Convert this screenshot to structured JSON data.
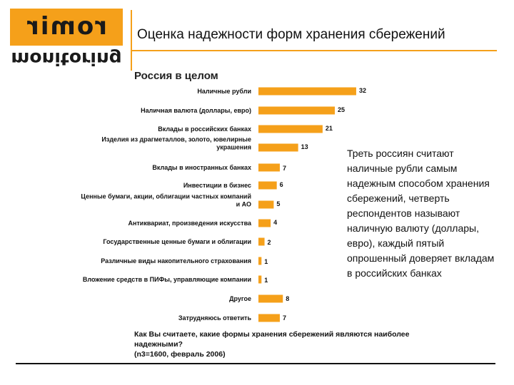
{
  "logo": {
    "brand": "romir",
    "product": "monitoring",
    "color": "#f5a01a"
  },
  "header": {
    "title": "Оценка надежности форм хранения сбережений"
  },
  "subtitle": "Россия в целом",
  "annotation": "Треть россиян считают наличные рубли самым надежным способом хранения сбережений, четверть респондентов называют наличную валюту (доллары, евро), каждый пятый опрошенный доверяет вкладам в российских банках",
  "footnote": {
    "line1": "Как Вы считаете, какие формы хранения сбережений являются наиболее",
    "line2": "надежными?",
    "line3": "(n3=1600, февраль 2006)"
  },
  "chart_data": {
    "type": "bar",
    "orientation": "horizontal",
    "bar_color": "#f5a01a",
    "categories": [
      [
        "Наличные рубли"
      ],
      [
        "Наличная валюта (доллары, евро)"
      ],
      [
        "Вклады в российских банках"
      ],
      [
        "Изделия из драгметаллов, золото, ювелирные",
        "украшения"
      ],
      [
        "Вклады в иностранных банках"
      ],
      [
        "Инвестиции в бизнес"
      ],
      [
        "Ценные бумаги, акции, облигации частных компаний",
        "и АО"
      ],
      [
        "Антиквариат, произведения искусства"
      ],
      [
        "Государственные ценные бумаги и облигации"
      ],
      [
        "Различные виды накопительного страхования"
      ],
      [
        "Вложение средств в ПИФы, управляющие компании"
      ],
      [
        "Другое"
      ],
      [
        "Затрудняюсь ответить"
      ]
    ],
    "values": [
      32,
      25,
      21,
      13,
      7,
      6,
      5,
      4,
      2,
      1,
      1,
      8,
      7
    ]
  }
}
